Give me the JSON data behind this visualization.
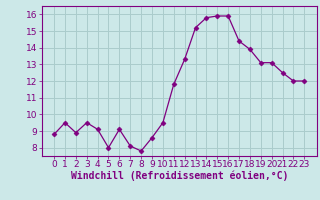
{
  "x": [
    0,
    1,
    2,
    3,
    4,
    5,
    6,
    7,
    8,
    9,
    10,
    11,
    12,
    13,
    14,
    15,
    16,
    17,
    18,
    19,
    20,
    21,
    22,
    23
  ],
  "y": [
    8.8,
    9.5,
    8.9,
    9.5,
    9.1,
    8.0,
    9.1,
    8.1,
    7.8,
    8.6,
    9.5,
    11.8,
    13.3,
    15.2,
    15.8,
    15.9,
    15.9,
    14.4,
    13.9,
    13.1,
    13.1,
    12.5,
    12.0,
    12.0
  ],
  "line_color": "#800080",
  "marker": "D",
  "marker_size": 2.5,
  "bg_color": "#cce8e8",
  "grid_color": "#aacccc",
  "xlabel": "Windchill (Refroidissement éolien,°C)",
  "xlabel_fontsize": 7,
  "tick_fontsize": 6.5,
  "ylim": [
    7.5,
    16.5
  ],
  "yticks": [
    8,
    9,
    10,
    11,
    12,
    13,
    14,
    15,
    16
  ],
  "xticks": [
    0,
    1,
    2,
    3,
    4,
    5,
    6,
    7,
    8,
    9,
    10,
    11,
    12,
    13,
    14,
    15,
    16,
    17,
    18,
    19,
    20,
    21,
    22,
    23
  ],
  "tick_color": "#800080",
  "label_color": "#800080",
  "spine_color": "#800080"
}
